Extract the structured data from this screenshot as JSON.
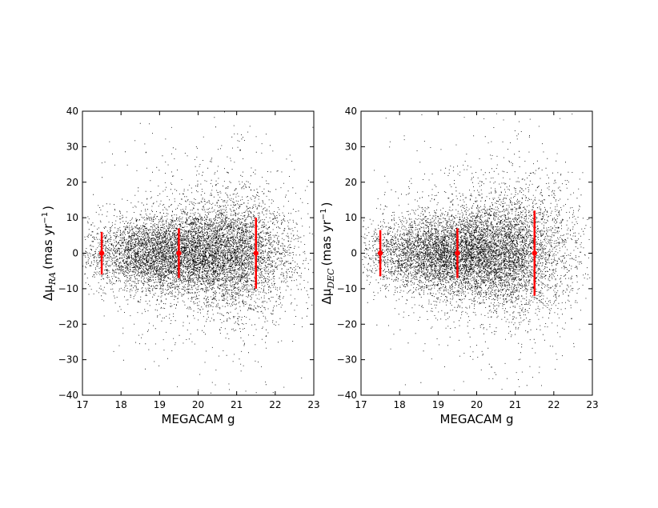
{
  "chart_data": [
    {
      "type": "scatter",
      "title": "",
      "xlabel": "MEGACAM g",
      "ylabel": {
        "prefix": "Δμ",
        "subscript": "RA",
        "unit": "(mas yr",
        "exponent": "−1",
        "close": ")"
      },
      "xlim": [
        17,
        23
      ],
      "ylim": [
        -40,
        40
      ],
      "xticks": [
        "17",
        "18",
        "19",
        "20",
        "21",
        "22",
        "23"
      ],
      "yticks": [
        "40",
        "30",
        "20",
        "10",
        "0",
        "−10",
        "−20",
        "−30",
        "−40"
      ],
      "grid": false,
      "point_color": "#000000",
      "errorbar_color": "#ff0000",
      "scatter_density": {
        "x": [
          17,
          18,
          19,
          20,
          21,
          22,
          23
        ],
        "relative_density": [
          0.05,
          0.5,
          1.0,
          1.2,
          1.1,
          0.35,
          0.0
        ],
        "y_center": [
          0,
          0,
          0,
          0,
          0,
          0,
          0
        ],
        "y_sigma": [
          6,
          6,
          6.5,
          7.5,
          9,
          10,
          10
        ]
      },
      "errorbars": [
        {
          "x": 17.5,
          "y": 0,
          "yerr": 6
        },
        {
          "x": 19.5,
          "y": 0,
          "yerr": 7
        },
        {
          "x": 21.5,
          "y": 0,
          "yerr": 10
        }
      ]
    },
    {
      "type": "scatter",
      "title": "",
      "xlabel": "MEGACAM g",
      "ylabel": {
        "prefix": "Δμ",
        "subscript": "DEC",
        "unit": "(mas yr",
        "exponent": "−1",
        "close": ")"
      },
      "xlim": [
        17,
        23
      ],
      "ylim": [
        -40,
        40
      ],
      "xticks": [
        "17",
        "18",
        "19",
        "20",
        "21",
        "22",
        "23"
      ],
      "yticks": [
        "40",
        "30",
        "20",
        "10",
        "0",
        "−10",
        "−20",
        "−30",
        "−40"
      ],
      "grid": false,
      "point_color": "#000000",
      "errorbar_color": "#ff0000",
      "scatter_density": {
        "x": [
          17,
          18,
          19,
          20,
          21,
          22,
          23
        ],
        "relative_density": [
          0.05,
          0.5,
          1.0,
          1.2,
          1.1,
          0.35,
          0.0
        ],
        "y_center": [
          0,
          0,
          0,
          0,
          0,
          0,
          0
        ],
        "y_sigma": [
          6,
          6,
          6.5,
          7.5,
          9.5,
          11,
          11
        ]
      },
      "errorbars": [
        {
          "x": 17.5,
          "y": 0,
          "yerr": 6.5
        },
        {
          "x": 19.5,
          "y": 0,
          "yerr": 7
        },
        {
          "x": 21.5,
          "y": 0,
          "yerr": 12
        }
      ]
    }
  ]
}
